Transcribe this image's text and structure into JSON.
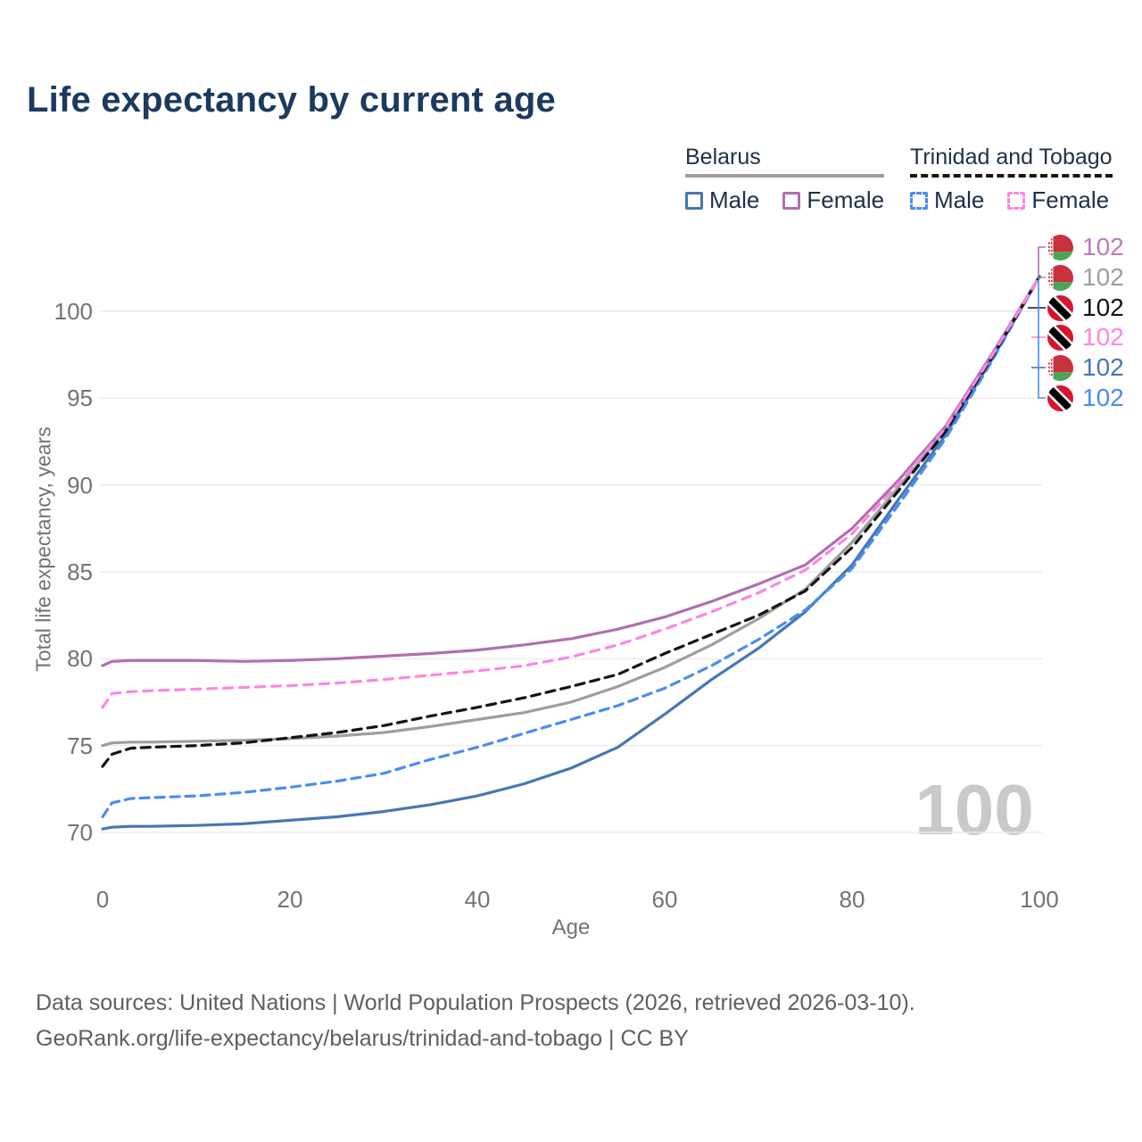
{
  "title": "Life expectancy by current age",
  "legend": {
    "groups": [
      {
        "label": "Belarus",
        "style": "solid",
        "items": [
          {
            "label": "Male",
            "color": "#4677b5"
          },
          {
            "label": "Female",
            "color": "#b06fb0"
          }
        ]
      },
      {
        "label": "Trinidad and Tobago",
        "style": "dashed",
        "items": [
          {
            "label": "Male",
            "color": "#4a8cf2"
          },
          {
            "label": "Female",
            "color": "#ff85e2"
          }
        ]
      }
    ]
  },
  "chart_data": {
    "type": "line",
    "title": "Life expectancy by current age",
    "xlabel": "Age",
    "ylabel": "Total life expectancy, years",
    "x_ticks": [
      0,
      20,
      40,
      60,
      80,
      100
    ],
    "y_ticks": [
      70,
      75,
      80,
      85,
      90,
      95,
      100
    ],
    "xlim": [
      0,
      100
    ],
    "ylim": [
      68.5,
      103
    ],
    "grid": "horizontal",
    "legend_position": "top-right",
    "series": [
      {
        "name": "Belarus All",
        "country": "Belarus",
        "sex": "all",
        "color": "#9e9e9e",
        "dash": "solid",
        "points": [
          [
            0,
            75.0
          ],
          [
            1,
            75.15
          ],
          [
            3,
            75.2
          ],
          [
            5,
            75.2
          ],
          [
            10,
            75.25
          ],
          [
            15,
            75.3
          ],
          [
            20,
            75.4
          ],
          [
            25,
            75.55
          ],
          [
            30,
            75.75
          ],
          [
            35,
            76.1
          ],
          [
            40,
            76.5
          ],
          [
            45,
            76.9
          ],
          [
            50,
            77.5
          ],
          [
            55,
            78.4
          ],
          [
            60,
            79.5
          ],
          [
            65,
            80.8
          ],
          [
            70,
            82.3
          ],
          [
            75,
            84.0
          ],
          [
            80,
            86.7
          ],
          [
            85,
            89.9
          ],
          [
            90,
            93.2
          ],
          [
            95,
            97.5
          ],
          [
            100,
            102
          ]
        ]
      },
      {
        "name": "Belarus Female",
        "country": "Belarus",
        "sex": "female",
        "color": "#b06fb0",
        "dash": "solid",
        "points": [
          [
            0,
            79.6
          ],
          [
            1,
            79.85
          ],
          [
            3,
            79.9
          ],
          [
            5,
            79.9
          ],
          [
            10,
            79.9
          ],
          [
            15,
            79.85
          ],
          [
            20,
            79.9
          ],
          [
            25,
            80.0
          ],
          [
            30,
            80.15
          ],
          [
            35,
            80.3
          ],
          [
            40,
            80.5
          ],
          [
            45,
            80.8
          ],
          [
            50,
            81.15
          ],
          [
            55,
            81.7
          ],
          [
            60,
            82.4
          ],
          [
            65,
            83.3
          ],
          [
            70,
            84.3
          ],
          [
            75,
            85.4
          ],
          [
            80,
            87.5
          ],
          [
            85,
            90.3
          ],
          [
            90,
            93.4
          ],
          [
            95,
            97.6
          ],
          [
            100,
            102
          ]
        ]
      },
      {
        "name": "Belarus Male",
        "country": "Belarus",
        "sex": "male",
        "color": "#4677b5",
        "dash": "solid",
        "points": [
          [
            0,
            70.2
          ],
          [
            1,
            70.3
          ],
          [
            3,
            70.35
          ],
          [
            5,
            70.35
          ],
          [
            10,
            70.4
          ],
          [
            15,
            70.5
          ],
          [
            20,
            70.7
          ],
          [
            25,
            70.9
          ],
          [
            30,
            71.2
          ],
          [
            35,
            71.6
          ],
          [
            40,
            72.1
          ],
          [
            45,
            72.8
          ],
          [
            50,
            73.7
          ],
          [
            55,
            74.9
          ],
          [
            60,
            76.8
          ],
          [
            65,
            78.8
          ],
          [
            70,
            80.6
          ],
          [
            75,
            82.7
          ],
          [
            80,
            85.4
          ],
          [
            85,
            89.2
          ],
          [
            90,
            92.9
          ],
          [
            95,
            97.3
          ],
          [
            100,
            102
          ]
        ]
      },
      {
        "name": "Trinidad and Tobago Male",
        "country": "Trinidad and Tobago",
        "sex": "male",
        "color": "#4a8cf2",
        "dash": "10 7",
        "points": [
          [
            0,
            70.9
          ],
          [
            1,
            71.7
          ],
          [
            3,
            71.95
          ],
          [
            5,
            72.0
          ],
          [
            10,
            72.1
          ],
          [
            15,
            72.3
          ],
          [
            20,
            72.6
          ],
          [
            25,
            72.95
          ],
          [
            30,
            73.4
          ],
          [
            35,
            74.2
          ],
          [
            40,
            74.9
          ],
          [
            45,
            75.7
          ],
          [
            50,
            76.5
          ],
          [
            55,
            77.3
          ],
          [
            60,
            78.3
          ],
          [
            65,
            79.6
          ],
          [
            70,
            81.1
          ],
          [
            75,
            82.8
          ],
          [
            80,
            85.2
          ],
          [
            85,
            88.9
          ],
          [
            90,
            92.7
          ],
          [
            95,
            97.2
          ],
          [
            100,
            102
          ]
        ]
      },
      {
        "name": "Trinidad and Tobago All",
        "country": "Trinidad and Tobago",
        "sex": "all",
        "color": "#141414",
        "dash": "10 7",
        "points": [
          [
            0,
            73.8
          ],
          [
            1,
            74.5
          ],
          [
            3,
            74.85
          ],
          [
            5,
            74.9
          ],
          [
            10,
            75.0
          ],
          [
            15,
            75.15
          ],
          [
            20,
            75.45
          ],
          [
            25,
            75.75
          ],
          [
            30,
            76.15
          ],
          [
            35,
            76.7
          ],
          [
            40,
            77.2
          ],
          [
            45,
            77.75
          ],
          [
            50,
            78.4
          ],
          [
            55,
            79.1
          ],
          [
            60,
            80.3
          ],
          [
            65,
            81.4
          ],
          [
            70,
            82.5
          ],
          [
            75,
            83.9
          ],
          [
            80,
            86.4
          ],
          [
            85,
            89.7
          ],
          [
            90,
            93.1
          ],
          [
            95,
            97.4
          ],
          [
            100,
            102
          ]
        ]
      },
      {
        "name": "Trinidad and Tobago Female",
        "country": "Trinidad and Tobago",
        "sex": "female",
        "color": "#ff85e2",
        "dash": "10 8",
        "points": [
          [
            0,
            77.2
          ],
          [
            1,
            78.0
          ],
          [
            3,
            78.1
          ],
          [
            5,
            78.15
          ],
          [
            10,
            78.25
          ],
          [
            15,
            78.35
          ],
          [
            20,
            78.45
          ],
          [
            25,
            78.6
          ],
          [
            30,
            78.8
          ],
          [
            35,
            79.05
          ],
          [
            40,
            79.3
          ],
          [
            45,
            79.6
          ],
          [
            50,
            80.1
          ],
          [
            55,
            80.8
          ],
          [
            60,
            81.7
          ],
          [
            65,
            82.7
          ],
          [
            70,
            83.8
          ],
          [
            75,
            85.1
          ],
          [
            80,
            87.2
          ],
          [
            85,
            90.1
          ],
          [
            90,
            93.3
          ],
          [
            95,
            97.5
          ],
          [
            100,
            102
          ]
        ]
      }
    ]
  },
  "endpoint_labels": [
    {
      "flag": "belarus",
      "value": "102",
      "color": "#b87cba"
    },
    {
      "flag": "belarus",
      "value": "102",
      "color": "#9e9e9e"
    },
    {
      "flag": "trinidad-and-tobago",
      "value": "102",
      "color": "#141414"
    },
    {
      "flag": "trinidad-and-tobago",
      "value": "102",
      "color": "#ff85e2"
    },
    {
      "flag": "belarus",
      "value": "102",
      "color": "#4677b5"
    },
    {
      "flag": "trinidad-and-tobago",
      "value": "102",
      "color": "#4a8cf2"
    }
  ],
  "watermark": "100",
  "footer": {
    "line1": "Data sources: United Nations | World Population Prospects (2026, retrieved 2026-03-10).",
    "line2": "GeoRank.org/life-expectancy/belarus/trinidad-and-tobago | CC BY"
  },
  "flag_colors": {
    "belarus_red": "#c8313e",
    "belarus_green": "#4aa657",
    "tt_red": "#d8142f",
    "tt_black": "#000000",
    "tt_white": "#ffffff"
  }
}
